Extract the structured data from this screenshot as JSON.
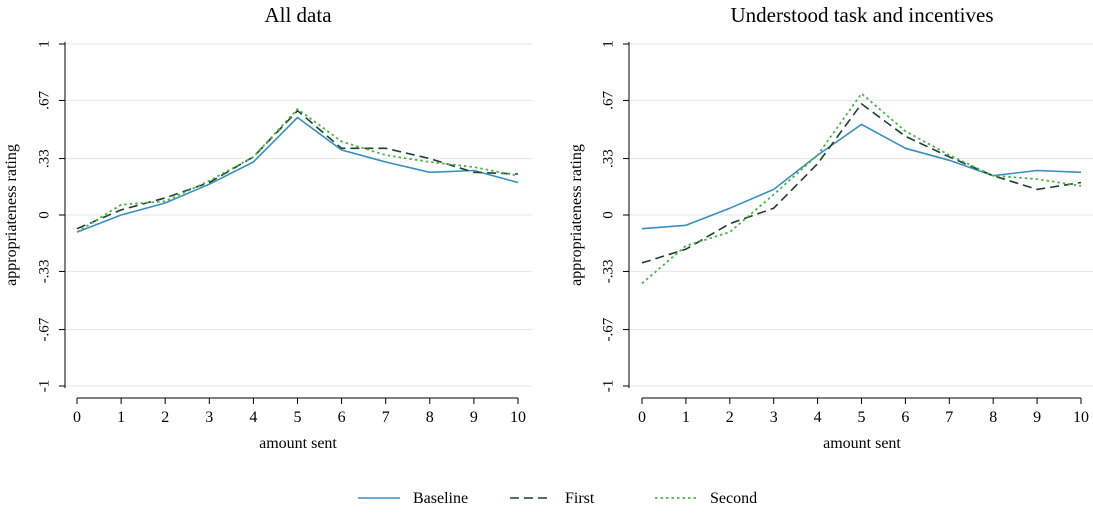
{
  "chart_data": [
    {
      "type": "line",
      "title": "All data",
      "xlabel": "amount sent",
      "ylabel": "appropriateness rating",
      "x": [
        0,
        1,
        2,
        3,
        4,
        5,
        6,
        7,
        8,
        9,
        10
      ],
      "xticks": [
        "0",
        "1",
        "2",
        "3",
        "4",
        "5",
        "6",
        "7",
        "8",
        "9",
        "10"
      ],
      "ylim": [
        -1,
        1
      ],
      "yticks": [
        -1,
        -0.67,
        -0.33,
        0,
        0.33,
        0.67,
        1
      ],
      "ytick_labels": [
        "-1",
        "-.67",
        "-.33",
        "0",
        ".33",
        ".67",
        "1"
      ],
      "grid": true,
      "series": [
        {
          "name": "Baseline",
          "values": [
            -0.1,
            0.0,
            0.07,
            0.18,
            0.31,
            0.57,
            0.38,
            0.31,
            0.25,
            0.26,
            0.19
          ]
        },
        {
          "name": "First",
          "values": [
            -0.08,
            0.03,
            0.1,
            0.19,
            0.34,
            0.61,
            0.39,
            0.39,
            0.33,
            0.25,
            0.24
          ]
        },
        {
          "name": "Second",
          "values": [
            -0.1,
            0.06,
            0.08,
            0.2,
            0.34,
            0.62,
            0.43,
            0.35,
            0.31,
            0.28,
            0.23
          ]
        }
      ]
    },
    {
      "type": "line",
      "title": "Understood task and incentives",
      "xlabel": "amount sent",
      "ylabel": "appropriateness rating",
      "x": [
        0,
        1,
        2,
        3,
        4,
        5,
        6,
        7,
        8,
        9,
        10
      ],
      "xticks": [
        "0",
        "1",
        "2",
        "3",
        "4",
        "5",
        "6",
        "7",
        "8",
        "9",
        "10"
      ],
      "ylim": [
        -1,
        1
      ],
      "yticks": [
        -1,
        -0.67,
        -0.33,
        0,
        0.33,
        0.67,
        1
      ],
      "ytick_labels": [
        "-1",
        "-.67",
        "-.33",
        "0",
        ".33",
        ".67",
        "1"
      ],
      "grid": true,
      "series": [
        {
          "name": "Baseline",
          "values": [
            -0.08,
            -0.06,
            0.04,
            0.15,
            0.35,
            0.53,
            0.39,
            0.32,
            0.23,
            0.26,
            0.25
          ]
        },
        {
          "name": "First",
          "values": [
            -0.28,
            -0.2,
            -0.05,
            0.04,
            0.3,
            0.65,
            0.46,
            0.34,
            0.23,
            0.15,
            0.19
          ]
        },
        {
          "name": "Second",
          "values": [
            -0.4,
            -0.18,
            -0.1,
            0.12,
            0.35,
            0.71,
            0.49,
            0.35,
            0.23,
            0.21,
            0.17
          ]
        }
      ]
    }
  ],
  "legend": {
    "position": "bottom",
    "items": [
      {
        "label": "Baseline",
        "color": "#3a8fbf",
        "dash": "solid"
      },
      {
        "label": "First",
        "color": "#1f3f2f",
        "dash": "dashed"
      },
      {
        "label": "Second",
        "color": "#4fb04f",
        "dash": "dotted"
      }
    ]
  },
  "colors": {
    "Baseline": "#3a8fbf",
    "First": "#1f3f2f",
    "Second": "#4fb04f",
    "grid": "#e6e6e6"
  }
}
